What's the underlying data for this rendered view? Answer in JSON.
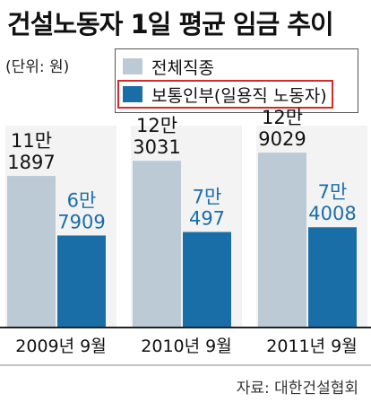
{
  "title": "건설노동자 1일 평균 임금 추이",
  "unit_label": "(단위: 원)",
  "source": "자료: 대한건설협회",
  "colors": {
    "all_trades": "#bccad6",
    "general_laborer": "#1a6ea8",
    "legend_highlight": "#d42a2a",
    "panel_shade": "#f3f3f3",
    "axis": "#222222"
  },
  "chart_data": {
    "type": "bar",
    "title": "건설노동자 1일 평균 임금 추이",
    "unit": "(단위: 원)",
    "categories": [
      "2009년  9월",
      "2010년  9월",
      "2011년  9월"
    ],
    "series": [
      {
        "name": "전체직종",
        "values": [
          111897,
          123031,
          129029
        ],
        "labels": [
          [
            "11만",
            "1897"
          ],
          [
            "12만",
            "3031"
          ],
          [
            "12만",
            "9029"
          ]
        ]
      },
      {
        "name": "보통인부(일용직 노동자)",
        "values": [
          67909,
          70497,
          74008
        ],
        "labels": [
          [
            "6만",
            "7909"
          ],
          [
            "7만",
            "497"
          ],
          [
            "7만",
            "4008"
          ]
        ]
      }
    ],
    "legend_position": "top-right",
    "grid": false
  }
}
